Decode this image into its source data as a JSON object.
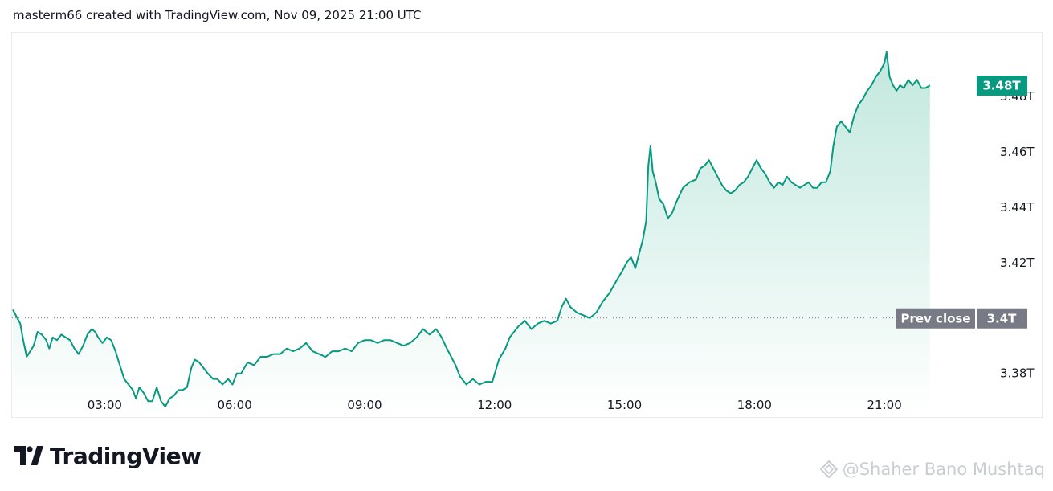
{
  "header": {
    "caption": "masterm66 created with TradingView.com, Nov 09, 2025 21:00 UTC"
  },
  "brand": {
    "logo_text": "TradingView"
  },
  "watermark": {
    "text": "@Shaher Bano Mushtaq"
  },
  "colors": {
    "line": "#089981",
    "fill_top": "#bfe7dc",
    "fill_bottom": "#ffffff",
    "last_price_label_bg": "#089981",
    "prev_close_label_bg": "#787b86",
    "axis_text": "#131722",
    "prev_close_line": "#787b86"
  },
  "chart_data": {
    "type": "area",
    "x_unit": "hours",
    "x_tick_labels": [
      {
        "t": 3,
        "label": "03:00"
      },
      {
        "t": 6,
        "label": "06:00"
      },
      {
        "t": 9,
        "label": "09:00"
      },
      {
        "t": 12,
        "label": "12:00"
      },
      {
        "t": 15,
        "label": "15:00"
      },
      {
        "t": 18,
        "label": "18:00"
      },
      {
        "t": 21,
        "label": "21:00"
      }
    ],
    "y_tick_labels": [
      {
        "v": 3.38,
        "label": "3.38T"
      },
      {
        "v": 3.42,
        "label": "3.42T"
      },
      {
        "v": 3.44,
        "label": "3.44T"
      },
      {
        "v": 3.46,
        "label": "3.46T"
      },
      {
        "v": 3.48,
        "label": "3.48T"
      }
    ],
    "x_range": [
      0.88,
      23.0
    ],
    "y_range": [
      3.366,
      3.502
    ],
    "last_price": {
      "value": 3.484,
      "label": "3.48T"
    },
    "prev_close": {
      "value": 3.4,
      "label": "3.4T",
      "name": "Prev close"
    },
    "series": [
      {
        "points": [
          [
            0.88,
            3.403
          ],
          [
            1.05,
            3.398
          ],
          [
            1.12,
            3.392
          ],
          [
            1.2,
            3.386
          ],
          [
            1.28,
            3.388
          ],
          [
            1.36,
            3.39
          ],
          [
            1.45,
            3.395
          ],
          [
            1.55,
            3.394
          ],
          [
            1.65,
            3.392
          ],
          [
            1.72,
            3.389
          ],
          [
            1.8,
            3.393
          ],
          [
            1.9,
            3.392
          ],
          [
            2.0,
            3.394
          ],
          [
            2.1,
            3.393
          ],
          [
            2.2,
            3.392
          ],
          [
            2.3,
            3.389
          ],
          [
            2.4,
            3.387
          ],
          [
            2.5,
            3.39
          ],
          [
            2.6,
            3.394
          ],
          [
            2.7,
            3.396
          ],
          [
            2.78,
            3.395
          ],
          [
            2.85,
            3.393
          ],
          [
            2.95,
            3.391
          ],
          [
            3.05,
            3.393
          ],
          [
            3.15,
            3.392
          ],
          [
            3.25,
            3.388
          ],
          [
            3.35,
            3.383
          ],
          [
            3.45,
            3.378
          ],
          [
            3.55,
            3.376
          ],
          [
            3.65,
            3.374
          ],
          [
            3.72,
            3.371
          ],
          [
            3.8,
            3.375
          ],
          [
            3.9,
            3.373
          ],
          [
            4.0,
            3.37
          ],
          [
            4.1,
            3.37
          ],
          [
            4.2,
            3.375
          ],
          [
            4.3,
            3.37
          ],
          [
            4.4,
            3.368
          ],
          [
            4.5,
            3.371
          ],
          [
            4.6,
            3.372
          ],
          [
            4.7,
            3.374
          ],
          [
            4.8,
            3.374
          ],
          [
            4.9,
            3.375
          ],
          [
            5.0,
            3.382
          ],
          [
            5.08,
            3.385
          ],
          [
            5.18,
            3.384
          ],
          [
            5.28,
            3.382
          ],
          [
            5.38,
            3.38
          ],
          [
            5.5,
            3.378
          ],
          [
            5.6,
            3.378
          ],
          [
            5.72,
            3.376
          ],
          [
            5.85,
            3.378
          ],
          [
            5.95,
            3.376
          ],
          [
            6.05,
            3.38
          ],
          [
            6.15,
            3.38
          ],
          [
            6.3,
            3.384
          ],
          [
            6.45,
            3.383
          ],
          [
            6.6,
            3.386
          ],
          [
            6.75,
            3.386
          ],
          [
            6.9,
            3.387
          ],
          [
            7.05,
            3.387
          ],
          [
            7.2,
            3.389
          ],
          [
            7.35,
            3.388
          ],
          [
            7.5,
            3.389
          ],
          [
            7.65,
            3.391
          ],
          [
            7.8,
            3.388
          ],
          [
            7.95,
            3.387
          ],
          [
            8.1,
            3.386
          ],
          [
            8.25,
            3.388
          ],
          [
            8.4,
            3.388
          ],
          [
            8.55,
            3.389
          ],
          [
            8.7,
            3.388
          ],
          [
            8.85,
            3.391
          ],
          [
            9.0,
            3.392
          ],
          [
            9.15,
            3.392
          ],
          [
            9.3,
            3.391
          ],
          [
            9.45,
            3.392
          ],
          [
            9.6,
            3.392
          ],
          [
            9.75,
            3.391
          ],
          [
            9.9,
            3.39
          ],
          [
            10.05,
            3.391
          ],
          [
            10.2,
            3.393
          ],
          [
            10.35,
            3.396
          ],
          [
            10.5,
            3.394
          ],
          [
            10.65,
            3.396
          ],
          [
            10.78,
            3.393
          ],
          [
            10.9,
            3.389
          ],
          [
            11.0,
            3.386
          ],
          [
            11.1,
            3.383
          ],
          [
            11.2,
            3.379
          ],
          [
            11.35,
            3.376
          ],
          [
            11.5,
            3.378
          ],
          [
            11.65,
            3.376
          ],
          [
            11.8,
            3.377
          ],
          [
            11.95,
            3.377
          ],
          [
            12.1,
            3.385
          ],
          [
            12.25,
            3.389
          ],
          [
            12.35,
            3.393
          ],
          [
            12.45,
            3.395
          ],
          [
            12.55,
            3.397
          ],
          [
            12.7,
            3.399
          ],
          [
            12.85,
            3.396
          ],
          [
            13.0,
            3.398
          ],
          [
            13.15,
            3.399
          ],
          [
            13.3,
            3.398
          ],
          [
            13.45,
            3.399
          ],
          [
            13.55,
            3.404
          ],
          [
            13.65,
            3.407
          ],
          [
            13.75,
            3.404
          ],
          [
            13.9,
            3.402
          ],
          [
            14.05,
            3.401
          ],
          [
            14.2,
            3.4
          ],
          [
            14.35,
            3.402
          ],
          [
            14.5,
            3.406
          ],
          [
            14.65,
            3.409
          ],
          [
            14.8,
            3.413
          ],
          [
            14.95,
            3.417
          ],
          [
            15.05,
            3.42
          ],
          [
            15.15,
            3.422
          ],
          [
            15.25,
            3.418
          ],
          [
            15.35,
            3.424
          ],
          [
            15.42,
            3.428
          ],
          [
            15.5,
            3.435
          ],
          [
            15.55,
            3.455
          ],
          [
            15.6,
            3.462
          ],
          [
            15.65,
            3.453
          ],
          [
            15.72,
            3.449
          ],
          [
            15.8,
            3.443
          ],
          [
            15.9,
            3.441
          ],
          [
            16.0,
            3.436
          ],
          [
            16.1,
            3.438
          ],
          [
            16.2,
            3.442
          ],
          [
            16.35,
            3.447
          ],
          [
            16.5,
            3.449
          ],
          [
            16.65,
            3.45
          ],
          [
            16.75,
            3.454
          ],
          [
            16.85,
            3.455
          ],
          [
            16.95,
            3.457
          ],
          [
            17.05,
            3.454
          ],
          [
            17.15,
            3.451
          ],
          [
            17.25,
            3.448
          ],
          [
            17.35,
            3.446
          ],
          [
            17.45,
            3.445
          ],
          [
            17.55,
            3.446
          ],
          [
            17.65,
            3.448
          ],
          [
            17.75,
            3.449
          ],
          [
            17.85,
            3.451
          ],
          [
            17.95,
            3.454
          ],
          [
            18.05,
            3.457
          ],
          [
            18.15,
            3.454
          ],
          [
            18.25,
            3.452
          ],
          [
            18.35,
            3.449
          ],
          [
            18.45,
            3.447
          ],
          [
            18.55,
            3.449
          ],
          [
            18.65,
            3.448
          ],
          [
            18.75,
            3.451
          ],
          [
            18.85,
            3.449
          ],
          [
            18.95,
            3.448
          ],
          [
            19.05,
            3.447
          ],
          [
            19.15,
            3.448
          ],
          [
            19.25,
            3.449
          ],
          [
            19.35,
            3.447
          ],
          [
            19.45,
            3.447
          ],
          [
            19.55,
            3.449
          ],
          [
            19.65,
            3.449
          ],
          [
            19.75,
            3.453
          ],
          [
            19.82,
            3.462
          ],
          [
            19.9,
            3.469
          ],
          [
            20.0,
            3.471
          ],
          [
            20.1,
            3.469
          ],
          [
            20.2,
            3.467
          ],
          [
            20.3,
            3.473
          ],
          [
            20.4,
            3.477
          ],
          [
            20.5,
            3.479
          ],
          [
            20.6,
            3.482
          ],
          [
            20.7,
            3.484
          ],
          [
            20.8,
            3.487
          ],
          [
            20.9,
            3.489
          ],
          [
            21.0,
            3.492
          ],
          [
            21.05,
            3.496
          ],
          [
            21.12,
            3.487
          ],
          [
            21.2,
            3.484
          ],
          [
            21.28,
            3.482
          ],
          [
            21.36,
            3.484
          ],
          [
            21.45,
            3.483
          ],
          [
            21.55,
            3.486
          ],
          [
            21.65,
            3.484
          ],
          [
            21.75,
            3.486
          ],
          [
            21.85,
            3.483
          ],
          [
            21.95,
            3.483
          ],
          [
            22.05,
            3.484
          ]
        ]
      }
    ]
  }
}
